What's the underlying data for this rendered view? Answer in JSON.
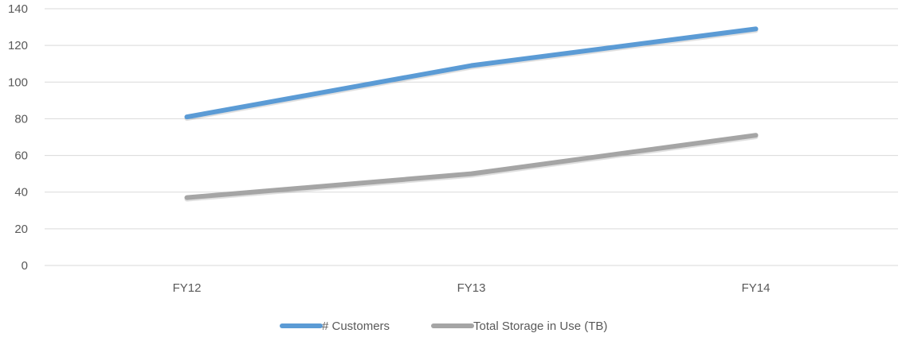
{
  "chart_data": {
    "type": "line",
    "categories": [
      "FY12",
      "FY13",
      "FY14"
    ],
    "series": [
      {
        "name": "# Customers",
        "values": [
          81,
          109,
          129
        ],
        "color": "#5b9bd5"
      },
      {
        "name": "Total Storage in Use (TB)",
        "values": [
          37,
          50,
          71
        ],
        "color": "#a5a5a5"
      }
    ],
    "y_ticks": [
      "0",
      "20",
      "40",
      "60",
      "80",
      "100",
      "120",
      "140"
    ],
    "ylim": [
      0,
      140
    ],
    "grid": true,
    "legend_position": "bottom"
  }
}
